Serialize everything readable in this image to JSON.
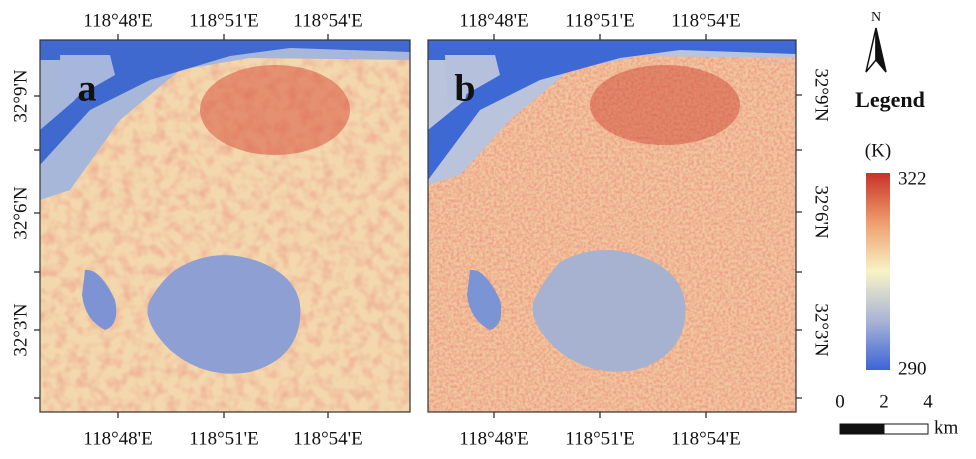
{
  "panels": [
    {
      "label": "a",
      "top_ticks": [
        "118°48'E",
        "118°51'E",
        "118°54'E"
      ],
      "bottom_ticks": [
        "118°48'E",
        "118°51'E",
        "118°54'E"
      ],
      "lat_ticks": [
        "32°9'N",
        "32°6'N",
        "32°3'N"
      ]
    },
    {
      "label": "b",
      "top_ticks": [
        "118°48'E",
        "118°51'E",
        "118°54'E"
      ],
      "bottom_ticks": [
        "118°48'E",
        "118°51'E",
        "118°54'E"
      ],
      "lat_ticks": [
        "32°9'N",
        "32°6'N",
        "32°3'N"
      ]
    }
  ],
  "legend": {
    "north": "N",
    "title": "Legend",
    "unit": "(K)",
    "max": 322,
    "min": 290,
    "scale": {
      "ticks": [
        0,
        2,
        4
      ],
      "unit": "km"
    }
  }
}
